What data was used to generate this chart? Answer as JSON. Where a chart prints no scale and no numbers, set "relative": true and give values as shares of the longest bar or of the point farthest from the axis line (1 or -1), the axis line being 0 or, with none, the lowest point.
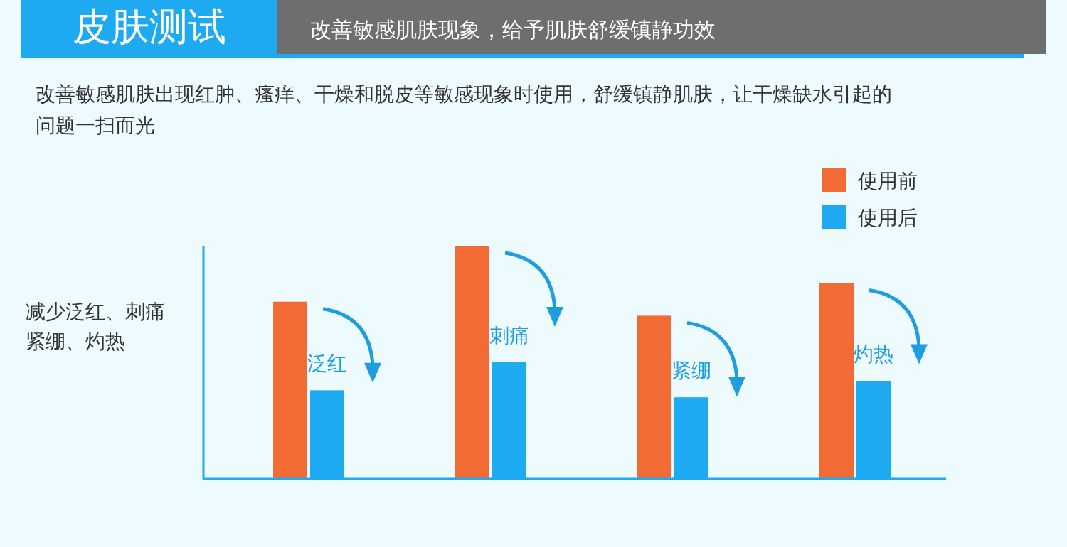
{
  "chart_data": {
    "type": "bar",
    "title": "皮肤测试",
    "subtitle": "改善敏感肌肤现象，给予肌肤舒缓镇静功效",
    "annotations": [
      "改善敏感肌肤出现红肿、瘙痒、干燥和脱皮等敏感现象时使用，舒缓镇静肌肤，让干燥缺水引起的问题一扫而光"
    ],
    "ylabel": "减少泛红、刺痛紧绷、灼热",
    "relative": true,
    "categories": [
      "泛红",
      "刺痛",
      "紧绷",
      "灼热"
    ],
    "series": [
      {
        "name": "使用前",
        "color": "#f26b35",
        "values": [
          0.76,
          1,
          0.7,
          0.84
        ]
      },
      {
        "name": "使用后",
        "color": "#1eaaf0",
        "values": [
          0.38,
          0.5,
          0.35,
          0.42
        ]
      }
    ],
    "legend": "top right"
  }
}
